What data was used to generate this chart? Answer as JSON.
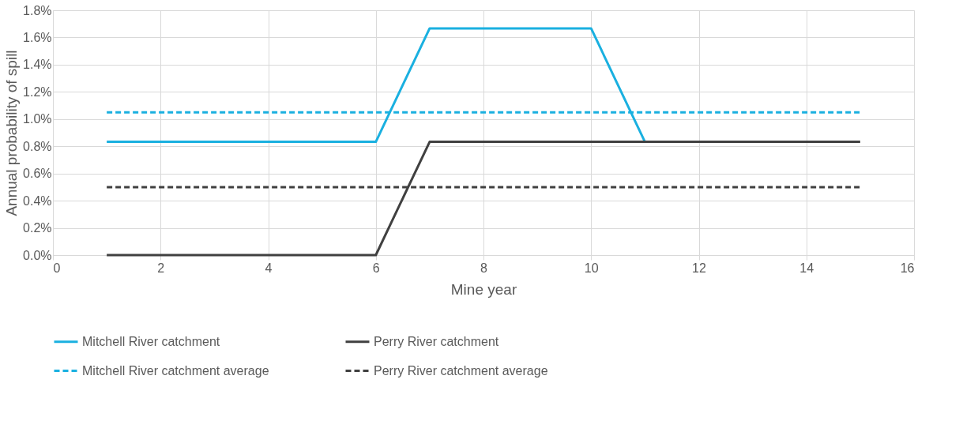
{
  "chart_data": {
    "type": "line",
    "xlabel": "Mine year",
    "ylabel": "Annual probability of spill",
    "xlim": [
      0,
      16
    ],
    "xticks": [
      0,
      2,
      4,
      6,
      8,
      10,
      12,
      14,
      16
    ],
    "ylim": [
      0,
      1.8
    ],
    "yticks": [
      {
        "value": 0,
        "label": "0.0%"
      },
      {
        "value": 0.2,
        "label": "0.2%"
      },
      {
        "value": 0.4,
        "label": "0.4%"
      },
      {
        "value": 0.6,
        "label": "0.6%"
      },
      {
        "value": 0.8,
        "label": "0.8%"
      },
      {
        "value": 1.0,
        "label": "1.0%"
      },
      {
        "value": 1.2,
        "label": "1.2%"
      },
      {
        "value": 1.4,
        "label": "1.4%"
      },
      {
        "value": 1.6,
        "label": "1.6%"
      },
      {
        "value": 1.8,
        "label": "1.8%"
      }
    ],
    "grid": true,
    "legend": "bottom",
    "marker": "none",
    "series": [
      {
        "name": "Mitchell River catchment",
        "color": "#1ab0e0",
        "line_style": "solid",
        "x": [
          1,
          2,
          3,
          4,
          5,
          6,
          7,
          8,
          9,
          10,
          11
        ],
        "values": [
          0.833,
          0.833,
          0.833,
          0.833,
          0.833,
          0.833,
          1.667,
          1.667,
          1.667,
          1.667,
          0.833
        ]
      },
      {
        "name": "Perry River catchment",
        "color": "#404040",
        "line_style": "solid",
        "x": [
          1,
          2,
          3,
          4,
          5,
          6,
          7,
          8,
          9,
          10,
          11,
          12,
          13,
          14,
          15
        ],
        "values": [
          0,
          0,
          0,
          0,
          0,
          0,
          0.833,
          0.833,
          0.833,
          0.833,
          0.833,
          0.833,
          0.833,
          0.833,
          0.833
        ]
      },
      {
        "name": "Mitchell River catchment average",
        "color": "#1ab0e0",
        "line_style": "dashed",
        "x": [
          1,
          15
        ],
        "values": [
          1.05,
          1.05
        ]
      },
      {
        "name": "Perry River catchment average",
        "color": "#404040",
        "line_style": "dashed",
        "x": [
          1,
          15
        ],
        "values": [
          0.5,
          0.5
        ]
      }
    ]
  }
}
